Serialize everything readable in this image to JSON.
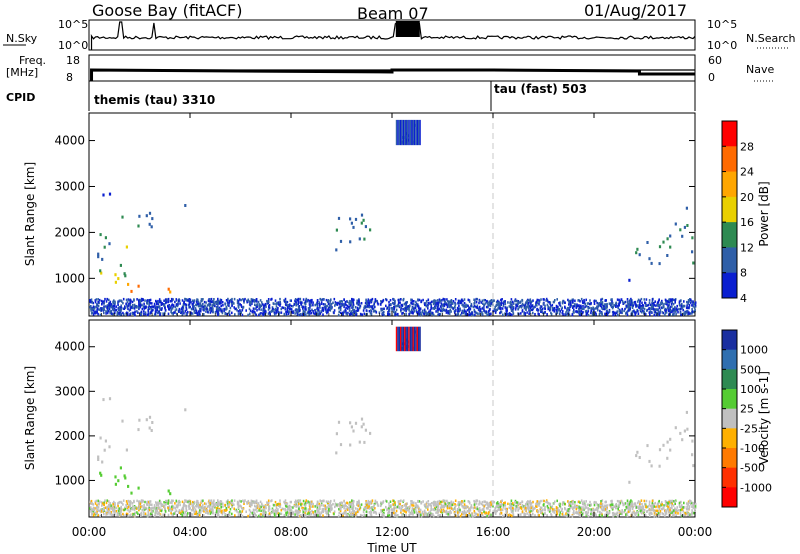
{
  "header": {
    "station": "Goose Bay (fitACF)",
    "beam": "Beam 07",
    "date": "01/Aug/2017"
  },
  "summary_panel": {
    "nsky_label": "N.Sky",
    "nsky_ticks": [
      "10^5",
      "10^0"
    ],
    "nsearch_label": "N.Search",
    "nsearch_ticks": [
      "10^5",
      "10^0"
    ],
    "freq_label_1": "Freq.",
    "freq_label_2": "[MHz]",
    "freq_ticks": [
      "18",
      "8"
    ],
    "nave_label": "Nave",
    "nave_ticks": [
      "60",
      "0"
    ],
    "cpid_label": "CPID",
    "cpid_modes": [
      {
        "name": "themis (tau) 3310",
        "start_hour": 0
      },
      {
        "name": "tau (fast) 503",
        "start_hour": 16
      }
    ]
  },
  "chart_data": [
    {
      "type": "heatmap",
      "name": "power",
      "ylabel": "Slant Range [km]",
      "xlabel": "",
      "yticks": [
        "4000",
        "3000",
        "2000",
        "1000"
      ],
      "ylim": [
        180,
        4600
      ],
      "xlim": [
        0,
        24
      ],
      "colorbar_label": "Power [dB]",
      "colorbar_ticks": [
        "28",
        "24",
        "20",
        "16",
        "12",
        "8",
        "4"
      ],
      "colorbar_colors": [
        "#ff0000",
        "#ff6a00",
        "#ffa600",
        "#e9d000",
        "#2e8a52",
        "#2f5fa8",
        "#0a1fd0"
      ],
      "dashed_line_hour": 16
    },
    {
      "type": "heatmap",
      "name": "velocity",
      "ylabel": "Slant Range [km]",
      "xlabel": "Time UT",
      "yticks": [
        "4000",
        "3000",
        "2000",
        "1000"
      ],
      "ylim": [
        180,
        4600
      ],
      "xlim": [
        0,
        24
      ],
      "xticks": [
        "00:00",
        "04:00",
        "08:00",
        "12:00",
        "16:00",
        "20:00",
        "00:00"
      ],
      "colorbar_label": "Velocity [m s-1]",
      "colorbar_ticks": [
        "1000",
        "500",
        "100",
        "25",
        "-25",
        "-100",
        "-500",
        "-1000"
      ],
      "colorbar_colors": [
        "#1a2fa0",
        "#2f6fb0",
        "#2e8a52",
        "#55cc33",
        "#c0c0c0",
        "#ffb000",
        "#ff7a00",
        "#ff3000",
        "#ff0000"
      ],
      "dashed_line_hour": 16
    }
  ]
}
